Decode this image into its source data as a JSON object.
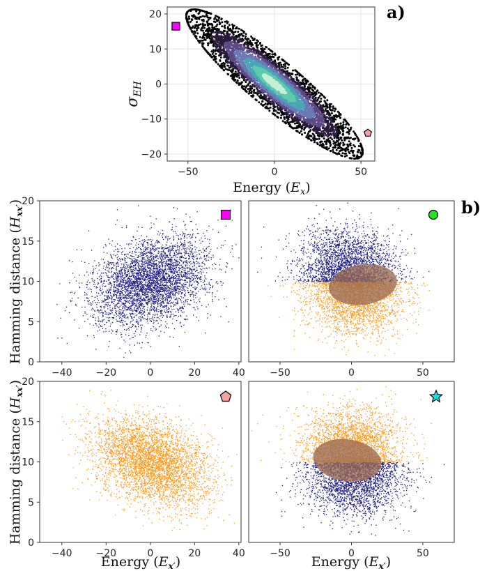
{
  "panel_labels": {
    "a": "a)",
    "b": "b)"
  },
  "colors": {
    "blue": "#1a1a80",
    "orange": "#ff9a1a",
    "square_marker": "#ff00ff",
    "circle_marker": "#22e022",
    "pentagon_marker": "#f4a3a3",
    "star_marker": "#22dde8",
    "overlap_ellipse": "#9a6a52"
  },
  "markers": {
    "square": "square-marker-icon",
    "circle": "circle-marker-icon",
    "pentagon": "pentagon-marker-icon",
    "star": "star-marker-icon"
  },
  "axis_text": {
    "a_xlabel_main": "Energy (",
    "a_xlabel_var": "E",
    "a_xlabel_sub": "x",
    "a_xlabel_end": ")",
    "a_ylabel_var": "σ",
    "a_ylabel_sub": "EH",
    "b_xlabel_main": "Energy (",
    "b_xlabel_var": "E",
    "b_xlabel_sub": "x′",
    "b_xlabel_end": ")",
    "b_ylabel_main": "Hamming distance (",
    "b_ylabel_var": "H",
    "b_ylabel_sub": "xx′",
    "b_ylabel_end": ")"
  },
  "chart_data": [
    {
      "id": "a",
      "type": "scatter",
      "description_series": "density-colored point cloud",
      "xlim": [
        -62,
        58
      ],
      "ylim": [
        -22,
        22
      ],
      "xticks": [
        -50,
        0,
        50
      ],
      "yticks": [
        -20,
        -10,
        0,
        10,
        20
      ],
      "xtick_labels": [
        "−50",
        "0",
        "50"
      ],
      "ytick_labels": [
        "−20",
        "−10",
        "0",
        "10",
        "20"
      ],
      "grid": true,
      "cloud": {
        "center": [
          0,
          0
        ],
        "correlation": "negative",
        "x_range": [
          -55,
          50
        ],
        "y_range": [
          -20,
          20
        ]
      },
      "highlighted_points": [
        {
          "marker": "square",
          "x": -57,
          "y": 16.5
        },
        {
          "marker": "pentagon",
          "x": 54,
          "y": -14
        }
      ]
    },
    {
      "id": "b1",
      "type": "scatter",
      "xlim": [
        -50,
        41
      ],
      "ylim": [
        0,
        20
      ],
      "xticks": [
        -40,
        -20,
        0,
        20,
        40
      ],
      "yticks": [
        0,
        5,
        10,
        15,
        20
      ],
      "xtick_labels": [
        "−40",
        "−20",
        "0",
        "20",
        "40"
      ],
      "ytick_labels": [
        "0",
        "5",
        "10",
        "15",
        "20"
      ],
      "marker": "square",
      "series": [
        {
          "color": "blue",
          "center": [
            0,
            10
          ],
          "spread": [
            13,
            2.6
          ],
          "correlation": 0.35
        }
      ]
    },
    {
      "id": "b2",
      "type": "scatter",
      "xlim": [
        -72,
        72
      ],
      "ylim": [
        0,
        20
      ],
      "xticks": [
        -50,
        0,
        50
      ],
      "yticks": [
        0,
        5,
        10,
        15,
        20
      ],
      "xtick_labels": [
        "−50",
        "0",
        "50"
      ],
      "marker": "circle",
      "series": [
        {
          "color": "blue",
          "region": "upper",
          "center": [
            -3,
            12
          ],
          "spread": [
            17,
            2.3
          ]
        },
        {
          "color": "orange",
          "region": "lower",
          "center": [
            3,
            8
          ],
          "spread": [
            17,
            2.3
          ]
        }
      ],
      "overlap_ellipse": {
        "center": [
          8,
          9.6
        ],
        "radii": [
          24,
          2.5
        ],
        "rotation_deg": -8
      }
    },
    {
      "id": "b3",
      "type": "scatter",
      "xlim": [
        -50,
        41
      ],
      "ylim": [
        0,
        20
      ],
      "xticks": [
        -40,
        -20,
        0,
        20,
        40
      ],
      "yticks": [
        0,
        5,
        10,
        15,
        20
      ],
      "xtick_labels": [
        "−40",
        "−20",
        "0",
        "20",
        "40"
      ],
      "ytick_labels": [
        "0",
        "5",
        "10",
        "15",
        "20"
      ],
      "marker": "pentagon",
      "series": [
        {
          "color": "orange",
          "center": [
            0,
            10
          ],
          "spread": [
            13,
            2.6
          ],
          "correlation": -0.35
        }
      ]
    },
    {
      "id": "b4",
      "type": "scatter",
      "xlim": [
        -72,
        72
      ],
      "ylim": [
        0,
        20
      ],
      "xticks": [
        -50,
        0,
        50
      ],
      "yticks": [
        0,
        5,
        10,
        15,
        20
      ],
      "xtick_labels": [
        "−50",
        "0",
        "50"
      ],
      "marker": "star",
      "series": [
        {
          "color": "orange",
          "region": "upper",
          "center": [
            0,
            12.3
          ],
          "spread": [
            17,
            2.2
          ]
        },
        {
          "color": "blue",
          "region": "lower",
          "center": [
            2,
            7.8
          ],
          "spread": [
            17,
            2.2
          ]
        }
      ],
      "overlap_ellipse": {
        "center": [
          -3,
          10.2
        ],
        "radii": [
          24,
          2.6
        ],
        "rotation_deg": 8
      }
    }
  ]
}
